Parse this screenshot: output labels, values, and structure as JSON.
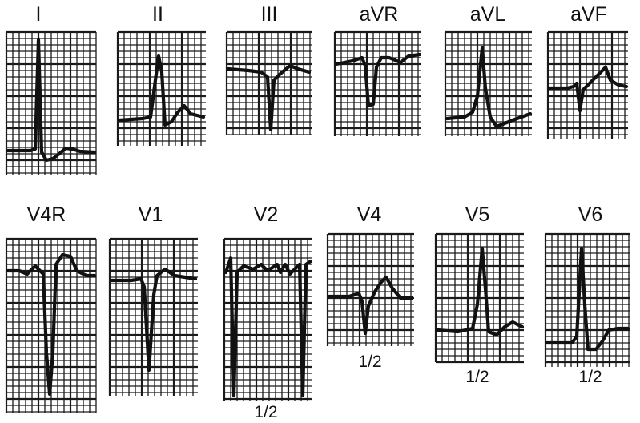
{
  "leads": [
    {
      "id": "I",
      "label": "I",
      "gain_note": ""
    },
    {
      "id": "II",
      "label": "II",
      "gain_note": ""
    },
    {
      "id": "III",
      "label": "III",
      "gain_note": ""
    },
    {
      "id": "aVR",
      "label": "aVR",
      "gain_note": ""
    },
    {
      "id": "aVL",
      "label": "aVL",
      "gain_note": ""
    },
    {
      "id": "aVF",
      "label": "aVF",
      "gain_note": ""
    },
    {
      "id": "V4R",
      "label": "V4R",
      "gain_note": ""
    },
    {
      "id": "V1",
      "label": "V1",
      "gain_note": ""
    },
    {
      "id": "V2",
      "label": "V2",
      "gain_note": "1/2"
    },
    {
      "id": "V4",
      "label": "V4",
      "gain_note": "1/2"
    },
    {
      "id": "V5",
      "label": "V5",
      "gain_note": "1/2"
    },
    {
      "id": "V6",
      "label": "V6",
      "gain_note": "1/2"
    }
  ],
  "colors": {
    "ink": "#111111",
    "paper": "#ffffff"
  }
}
